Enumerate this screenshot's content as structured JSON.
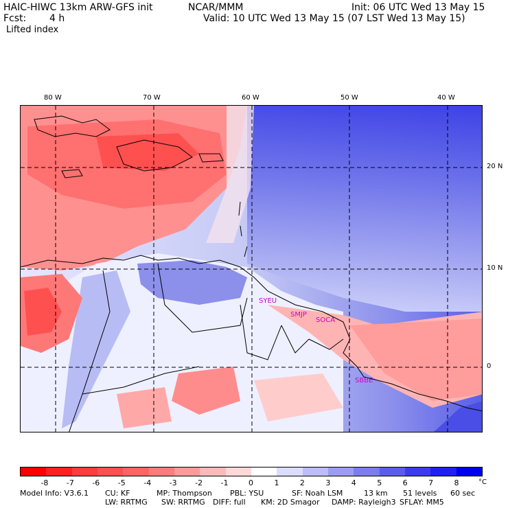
{
  "header": {
    "title": "HAIC-HIWC 13km ARW-GFS init",
    "org": "NCAR/MMM",
    "init": "Init: 06 UTC Wed 13 May 15",
    "fcst_label": "Fcst:",
    "fcst_value": "4 h",
    "valid": "Valid: 10 UTC Wed 13 May 15 (07 LST Wed 13 May 15)",
    "field": "Lifted index"
  },
  "map": {
    "lon_labels": [
      "80 W",
      "70 W",
      "60 W",
      "50 W",
      "40 W"
    ],
    "lat_labels": [
      "20 N",
      "10 N",
      "0"
    ],
    "stations": [
      "SYEU",
      "SMJP",
      "SOCA",
      "SBBE"
    ]
  },
  "colorbar": {
    "labels": [
      "-8",
      "-7",
      "-6",
      "-5",
      "-4",
      "-3",
      "-2",
      "-1",
      "0",
      "1",
      "2",
      "3",
      "4",
      "5",
      "6",
      "7",
      "8"
    ],
    "unit": "°C",
    "colors": [
      "#ff0000",
      "#ff2020",
      "#ff3c3c",
      "#ff5050",
      "#ff6464",
      "#ff7c7c",
      "#ff9a9a",
      "#ffb8b8",
      "#ffd8d8",
      "#ffffff",
      "#dcdcff",
      "#bcbcff",
      "#9c9cf4",
      "#7c7cf0",
      "#5c5cec",
      "#3c3cec",
      "#2020f0",
      "#0000ee"
    ]
  },
  "model_info": {
    "line1": [
      "Model Info: V3.6.1",
      "CU: KF",
      "MP: Thompson",
      "PBL: YSU",
      "SF: Noah LSM",
      "13 km",
      "51 levels",
      "60 sec"
    ],
    "line2": [
      "LW: RRTMG",
      "SW: RRTMG",
      "DIFF: full",
      "KM: 2D Smagor",
      "DAMP: Rayleigh3",
      "SFLAY: MM5"
    ]
  }
}
